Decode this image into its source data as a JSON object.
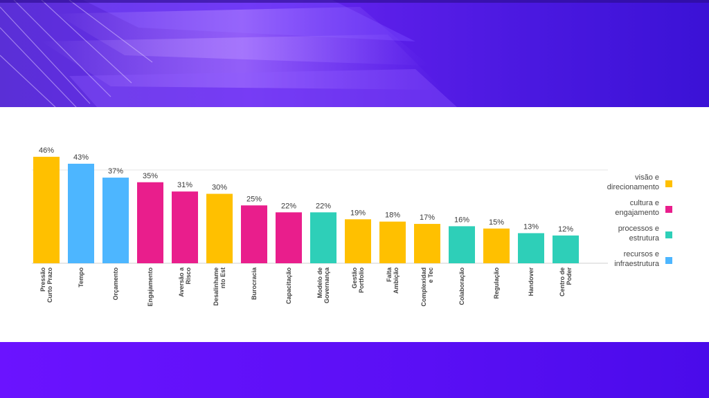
{
  "chart_data": {
    "type": "bar",
    "categories": [
      [
        "Pressão",
        "Curto Prazo"
      ],
      [
        "Tempo"
      ],
      [
        "Orçamento"
      ],
      [
        "Engajamento"
      ],
      [
        "Aversão a",
        "Risco"
      ],
      [
        "Desalinhame",
        "nto Est"
      ],
      [
        "Burocracia"
      ],
      [
        "Capacitação"
      ],
      [
        "Modelo de",
        "Governança"
      ],
      [
        "Gestão",
        "Portfolio"
      ],
      [
        "Falta",
        "Ambição"
      ],
      [
        "Complexidad",
        "e Tec"
      ],
      [
        "Colaboração"
      ],
      [
        "Regulação"
      ],
      [
        "Handover"
      ],
      [
        "Centro de",
        "Poder"
      ]
    ],
    "values": [
      46,
      43,
      37,
      35,
      31,
      30,
      25,
      22,
      22,
      19,
      18,
      17,
      16,
      15,
      13,
      12
    ],
    "value_labels": [
      "46%",
      "43%",
      "37%",
      "35%",
      "31%",
      "30%",
      "25%",
      "22%",
      "22%",
      "19%",
      "18%",
      "17%",
      "16%",
      "15%",
      "13%",
      "12%"
    ],
    "groups": [
      "visao",
      "recursos",
      "recursos",
      "cultura",
      "cultura",
      "visao",
      "cultura",
      "cultura",
      "processos",
      "visao",
      "visao",
      "visao",
      "processos",
      "visao",
      "processos",
      "processos"
    ],
    "legend": [
      {
        "key": "visao",
        "label": [
          "visão e",
          "direcionamento"
        ],
        "color": "#FFC000"
      },
      {
        "key": "cultura",
        "label": [
          "cultura e",
          "engajamento"
        ],
        "color": "#E91E8C"
      },
      {
        "key": "processos",
        "label": [
          "processos e",
          "estrutura"
        ],
        "color": "#2ECFB8"
      },
      {
        "key": "recursos",
        "label": [
          "recursos e",
          "infraestrutura"
        ],
        "color": "#4DB6FF"
      }
    ],
    "ylim": [
      0,
      50
    ],
    "grid": true,
    "legend_position": "right"
  }
}
